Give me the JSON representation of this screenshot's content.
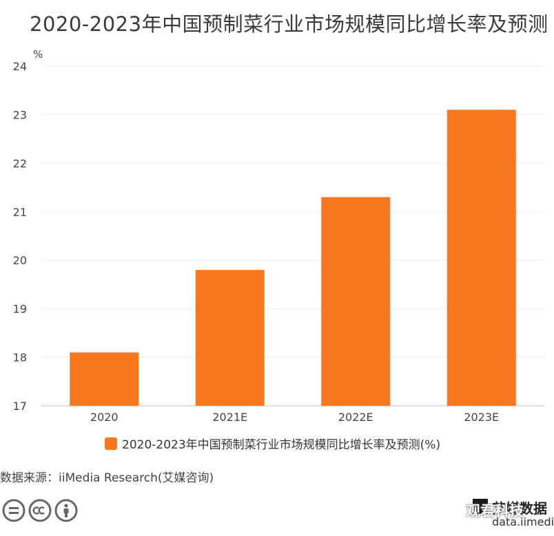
{
  "title": "2020-2023年中国预制菜行业市场规模同比增长率及预测",
  "chart_data": {
    "type": "bar",
    "title": "2020-2023年中国预制菜行业市场规模同比增长率及预测",
    "categories": [
      "2020",
      "2021E",
      "2022E",
      "2023E"
    ],
    "series": [
      {
        "name": "2020-2023年中国预制菜行业市场规模同比增长率及预测(%)",
        "values": [
          18.1,
          19.8,
          21.3,
          23.1
        ]
      }
    ],
    "ylabel": "%",
    "xlabel": "",
    "ylim": [
      17,
      24
    ],
    "yticks": [
      17,
      18,
      19,
      20,
      21,
      22,
      23,
      24
    ],
    "grid": true,
    "legend": "bottom"
  },
  "colors": {
    "bar": "#F7781F"
  },
  "legend": {
    "label": "2020-2023年中国预制菜行业市场规模同比增长率及预测(%)"
  },
  "source": "数据来源：iiMedia Research(艾媒咨询)",
  "license_icons": [
    "cc-equal-icon",
    "cc-icon",
    "cc-person-icon"
  ],
  "brand": {
    "name": "艾媒数据",
    "url": "data.iimedia"
  },
  "watermark": "观君科技"
}
